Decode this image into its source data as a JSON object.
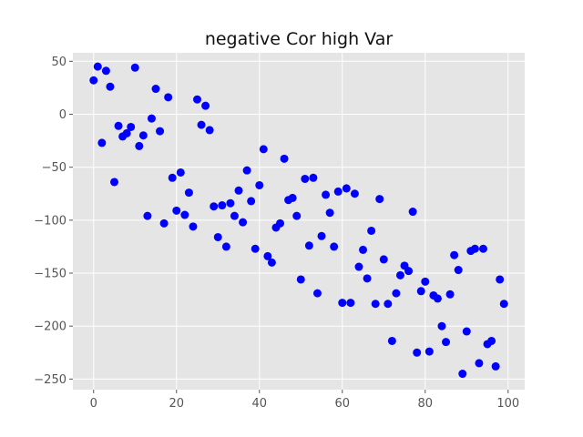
{
  "chart_data": {
    "type": "scatter",
    "title": "negative Cor high Var",
    "xlabel": "",
    "ylabel": "",
    "xlim": [
      -5,
      104
    ],
    "ylim": [
      -260,
      58
    ],
    "xticks": [
      0,
      20,
      40,
      60,
      80,
      100
    ],
    "yticks": [
      50,
      0,
      -50,
      -100,
      -150,
      -200,
      -250
    ],
    "grid": true,
    "background_color": "#e5e5e5",
    "marker_color": "#0000ff",
    "series": [
      {
        "x": [
          0,
          1,
          2,
          3,
          4,
          5,
          6,
          7,
          8,
          9,
          10,
          11,
          12,
          13,
          14,
          15,
          16,
          17,
          18,
          19,
          20,
          21,
          22,
          23,
          24,
          25,
          26,
          27,
          28,
          29,
          30,
          31,
          32,
          33,
          34,
          35,
          36,
          37,
          38,
          39,
          40,
          41,
          42,
          43,
          44,
          45,
          46,
          47,
          48,
          49,
          50,
          51,
          52,
          53,
          54,
          55,
          56,
          57,
          58,
          59,
          60,
          61,
          62,
          63,
          64,
          65,
          66,
          67,
          68,
          69,
          70,
          71,
          72,
          73,
          74,
          75,
          76,
          77,
          78,
          79,
          80,
          81,
          82,
          83,
          84,
          85,
          86,
          87,
          88,
          89,
          90,
          91,
          92,
          93,
          94,
          95,
          96,
          97,
          98,
          99
        ],
        "y": [
          32,
          45,
          -27,
          41,
          26,
          -64,
          -11,
          -21,
          -18,
          -12,
          44,
          -30,
          -20,
          -96,
          -4,
          24,
          -16,
          -103,
          16,
          -60,
          -91,
          -55,
          -95,
          -74,
          -106,
          14,
          -10,
          8,
          -15,
          -87,
          -116,
          -86,
          -125,
          -84,
          -96,
          -72,
          -102,
          -53,
          -82,
          -127,
          -67,
          -33,
          -134,
          -140,
          -107,
          -103,
          -42,
          -81,
          -79,
          -96,
          -156,
          -61,
          -124,
          -60,
          -169,
          -115,
          -76,
          -93,
          -125,
          -73,
          -178,
          -70,
          -178,
          -75,
          -144,
          -128,
          -155,
          -110,
          -179,
          -80,
          -137,
          -179,
          -214,
          -169,
          -152,
          -143,
          -148,
          -92,
          -225,
          -167,
          -158,
          -224,
          -171,
          -174,
          -200,
          -215,
          -170,
          -133,
          -147,
          -245,
          -205,
          -129,
          -127,
          -235,
          -127,
          -217,
          -214,
          -238,
          -156,
          -179
        ]
      }
    ]
  }
}
